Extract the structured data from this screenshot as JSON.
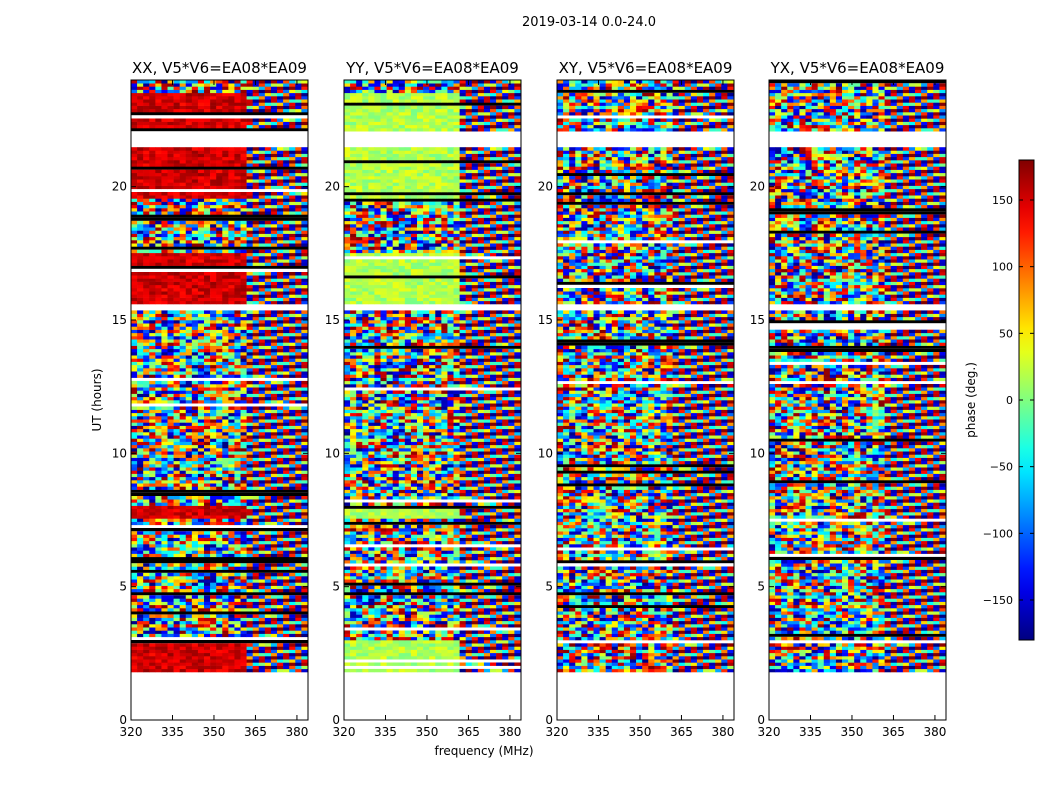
{
  "figure": {
    "suptitle": "2019-03-14 0.0-24.0"
  },
  "chart_data": {
    "type": "heatmap",
    "title": "2019-03-14 0.0-24.0",
    "xlabel": "frequency (MHz)",
    "ylabel": "UT (hours)",
    "xlim": [
      320,
      384
    ],
    "ylim": [
      0,
      24
    ],
    "xticks": [
      320,
      335,
      350,
      365,
      380
    ],
    "yticks": [
      0,
      5,
      10,
      15,
      20
    ],
    "panels": [
      {
        "title": "XX, V5*V6=EA08*EA09",
        "pol": "XX",
        "baseline": "V5*V6=EA08*EA09"
      },
      {
        "title": "YY, V5*V6=EA08*EA09",
        "pol": "YY",
        "baseline": "V5*V6=EA08*EA09"
      },
      {
        "title": "XY, V5*V6=EA08*EA09",
        "pol": "XY",
        "baseline": "V5*V6=EA08*EA09"
      },
      {
        "title": "YX, V5*V6=EA08*EA09",
        "pol": "YX",
        "baseline": "V5*V6=EA08*EA09"
      }
    ],
    "data_gaps_hours": [
      [
        0,
        1.75
      ],
      [
        15.3,
        15.5
      ],
      [
        21.4,
        22.0
      ]
    ],
    "colorbar": {
      "label": "phase (deg.)",
      "range": [
        -180,
        180
      ],
      "ticks": [
        150,
        100,
        50,
        0,
        -50,
        -100,
        -150
      ],
      "tick_labels": [
        "150",
        "100",
        "50",
        "0",
        "−50",
        "−100",
        "−150"
      ],
      "colormap": "jet"
    }
  }
}
